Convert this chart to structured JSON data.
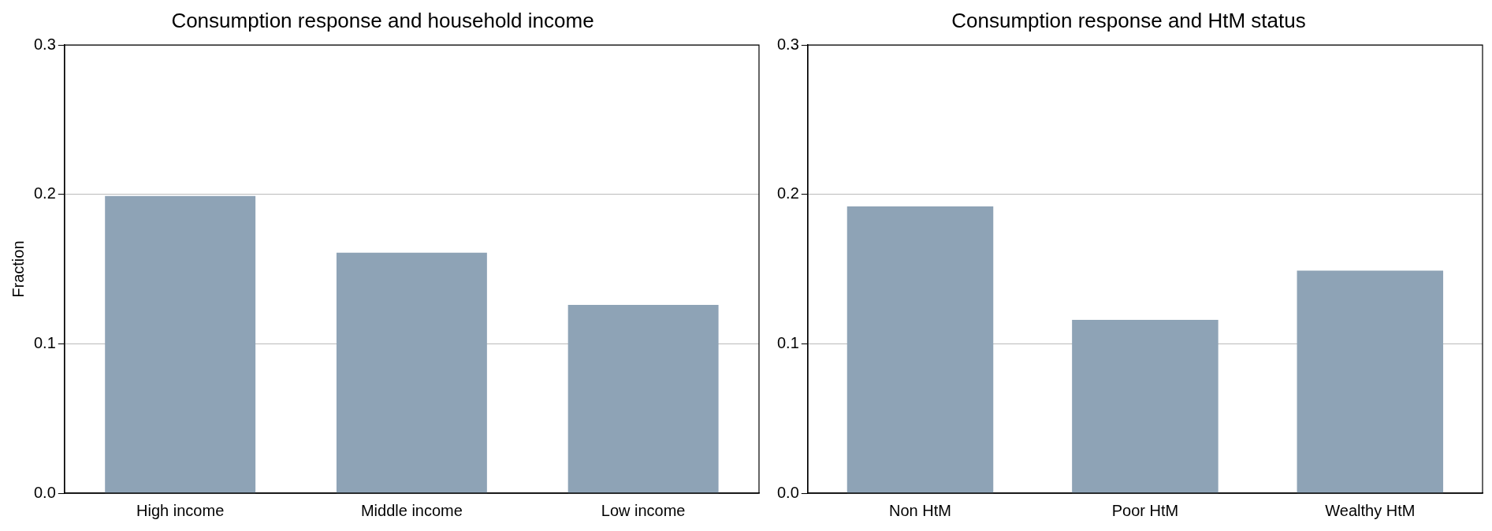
{
  "chart_data": [
    {
      "type": "bar",
      "title": "Consumption response and household income",
      "ylabel": "Fraction",
      "categories": [
        "High income",
        "Middle income",
        "Low income"
      ],
      "values": [
        0.199,
        0.161,
        0.126
      ],
      "color": "#8ea3b6",
      "ylim": [
        0,
        0.3
      ],
      "yticks": [
        {
          "value": 0,
          "label": "0.0"
        },
        0.1,
        0.2,
        0.3
      ],
      "grid": "y"
    },
    {
      "type": "bar",
      "title": "Consumption response and HtM status",
      "categories": [
        "Non HtM",
        "Poor HtM",
        "Wealthy HtM"
      ],
      "values": [
        0.192,
        0.116,
        0.149
      ],
      "color": "#8ea3b6",
      "ylim": [
        0,
        0.3
      ],
      "yticks": [
        {
          "value": 0,
          "label": "0.0"
        },
        0.1,
        0.2,
        0.3
      ],
      "grid": "y"
    }
  ]
}
